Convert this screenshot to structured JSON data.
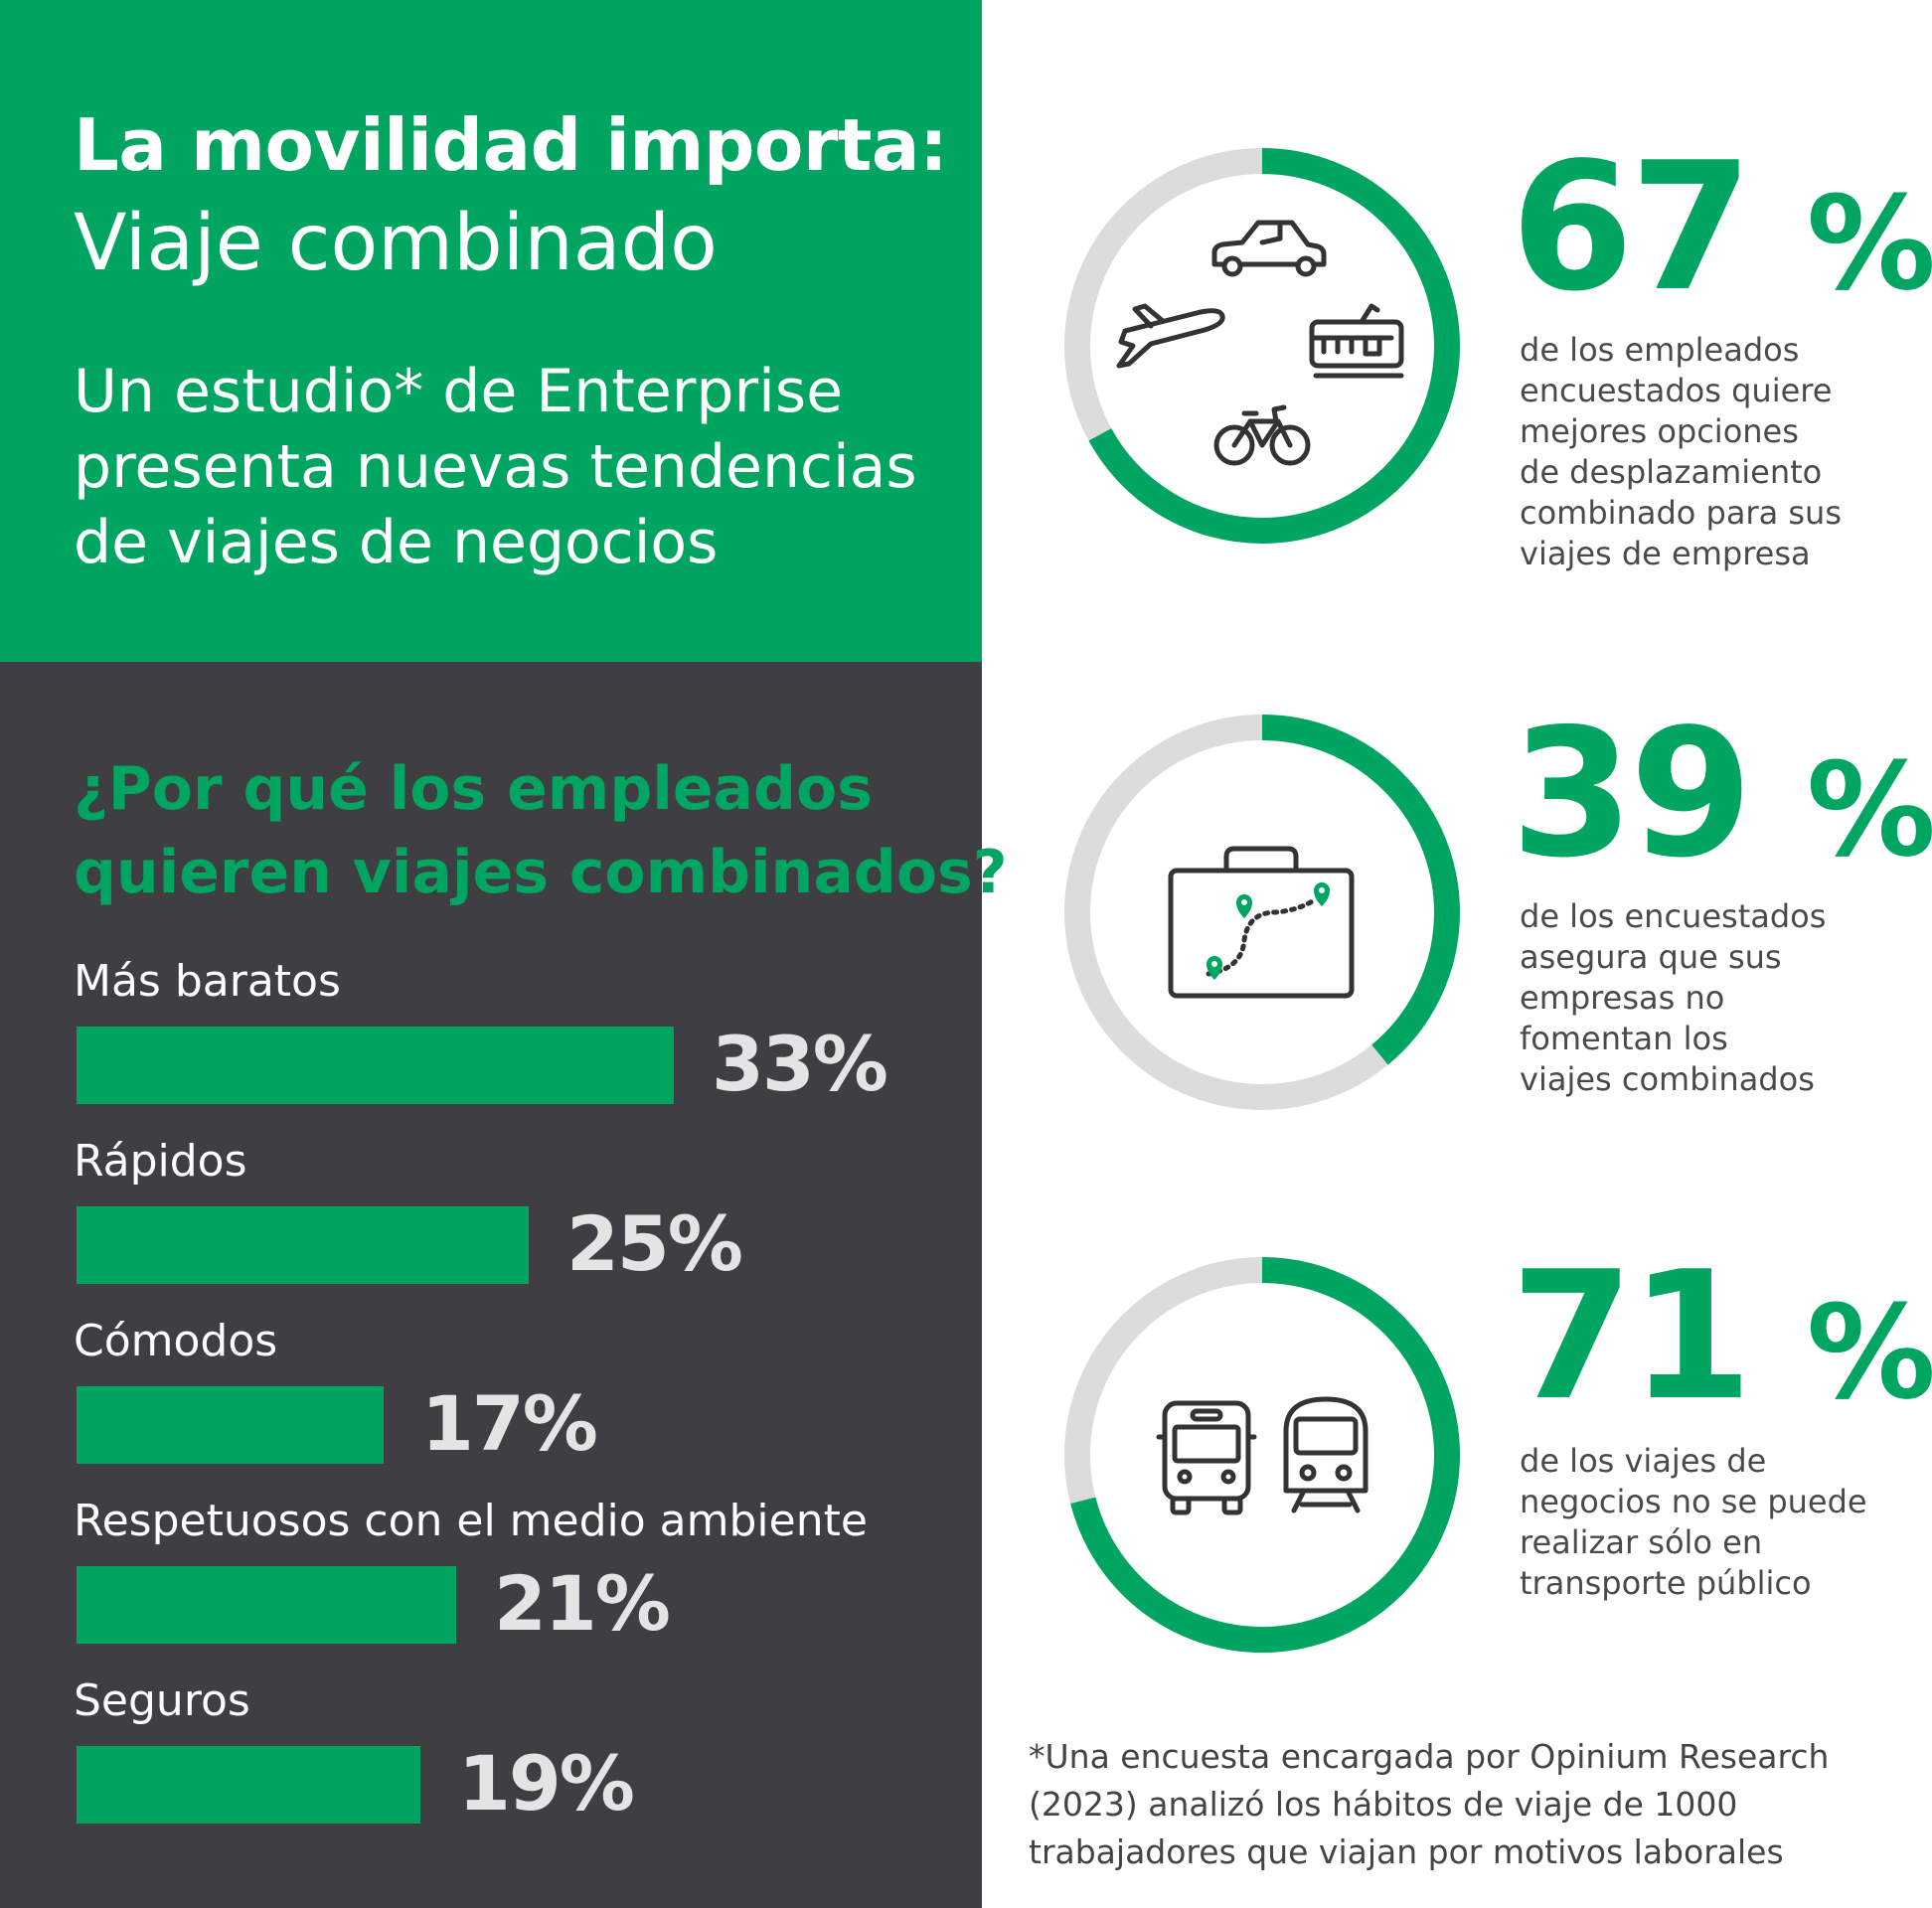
{
  "header": {
    "title": "La movilidad importa:",
    "subtitle_light": "Viaje combinado",
    "intro_lines": [
      "Un estudio* de Enterprise",
      "presenta nuevas tendencias",
      "de viajes de negocios"
    ]
  },
  "question": {
    "lines": [
      "¿Por qué los empleados",
      "quieren viajes combinados?"
    ]
  },
  "chart_data": [
    {
      "type": "bar",
      "title": "¿Por qué los empleados quieren viajes combinados?",
      "categories": [
        "Más baratos",
        "Rápidos",
        "Cómodos",
        "Respetuosos con el medio ambiente",
        "Seguros"
      ],
      "values": [
        33,
        25,
        17,
        21,
        19
      ],
      "value_labels": [
        "33%",
        "25%",
        "17%",
        "21%",
        "19%"
      ],
      "unit": "%",
      "orientation": "horizontal"
    },
    {
      "type": "pie",
      "variant": "donut",
      "items": [
        {
          "value": 67,
          "label": "67%",
          "icon": "transport-modes-icons",
          "caption": [
            "de los empleados",
            "encuestados quiere",
            "mejores opciones",
            "de desplazamiento",
            "combinado para sus",
            "viajes de empresa"
          ]
        },
        {
          "value": 39,
          "label": "39%",
          "icon": "briefcase-map-icon",
          "caption": [
            "de los encuestados",
            "asegura que sus",
            "empresas no",
            "fomentan los",
            "viajes combinados"
          ]
        },
        {
          "value": 71,
          "label": "71%",
          "icon": "bus-train-icon",
          "caption": [
            "de los viajes de",
            "negocios no se puede",
            "realizar sólo en",
            "transporte público"
          ]
        }
      ]
    }
  ],
  "footnote": {
    "lines": [
      "*Una encuesta encargada por Opinium Research",
      "(2023) analizó los hábitos de viaje de 1000",
      "trabajadores que viajan por motivos laborales"
    ]
  },
  "colors": {
    "accent": "#00a562",
    "dark_panel": "#3f3e42",
    "ring_track": "#dcdcdc",
    "bar_value_text": "#e4e4e4",
    "icon_stroke": "#333333"
  }
}
